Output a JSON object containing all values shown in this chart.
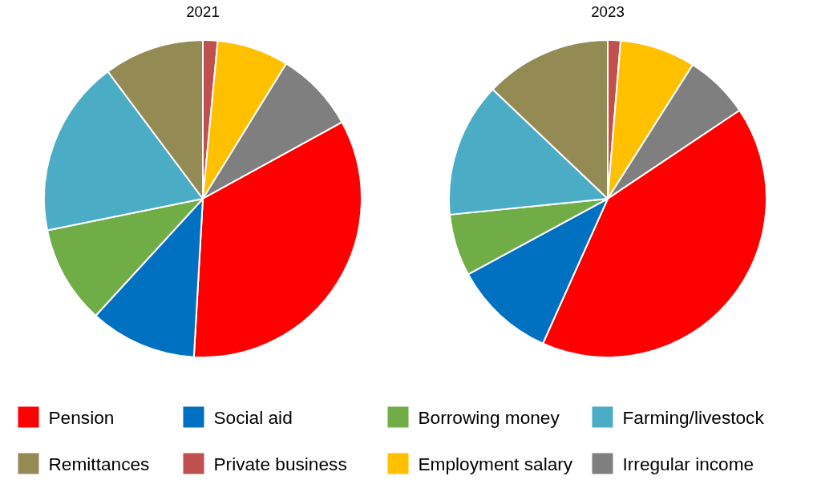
{
  "chart_data": [
    {
      "type": "pie",
      "title": "2021",
      "categories": [
        "Pension",
        "Social aid",
        "Borrowing money",
        "Farming/livestock",
        "Remittances",
        "Private business",
        "Employment salary",
        "Irregular income"
      ],
      "values": [
        33.9,
        10.9,
        10.0,
        18.0,
        10.2,
        1.5,
        7.3,
        8.2
      ],
      "colors": [
        "#ff0000",
        "#0070c0",
        "#70ad47",
        "#4bacc6",
        "#948a54",
        "#c0504d",
        "#ffc000",
        "#7f7f7f"
      ],
      "legend": "bottom"
    },
    {
      "type": "pie",
      "title": "2023",
      "categories": [
        null,
        null,
        null,
        null,
        null,
        null,
        null,
        null
      ],
      "values": [
        41.1,
        10.4,
        6.3,
        13.7,
        12.9,
        1.3,
        7.7,
        6.6
      ],
      "colors": [
        "#ff0000",
        "#0070c0",
        "#70ad47",
        "#4bacc6",
        "#948a54",
        "#c0504d",
        "#ffc000",
        "#7f7f7f"
      ]
    }
  ]
}
